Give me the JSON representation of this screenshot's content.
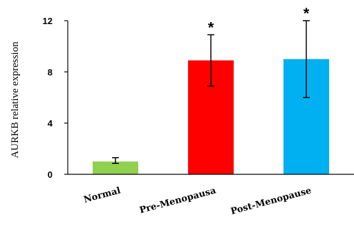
{
  "chart_data": {
    "type": "bar",
    "title": "",
    "xlabel": "",
    "ylabel": "AURKB relative expression",
    "categories": [
      "Normal",
      "Pre-Menopausa",
      "Post-Menopause"
    ],
    "values": [
      1.0,
      8.9,
      9.0
    ],
    "error_low": [
      0.85,
      6.9,
      6.0
    ],
    "error_high": [
      1.3,
      10.9,
      12.0
    ],
    "significance": [
      "",
      "*",
      "*"
    ],
    "colors": [
      "#92d050",
      "#ff0000",
      "#00b0f0"
    ],
    "ylim": [
      0,
      12
    ],
    "yticks": [
      0,
      4,
      8,
      12
    ],
    "grid": false,
    "legend": "none"
  }
}
